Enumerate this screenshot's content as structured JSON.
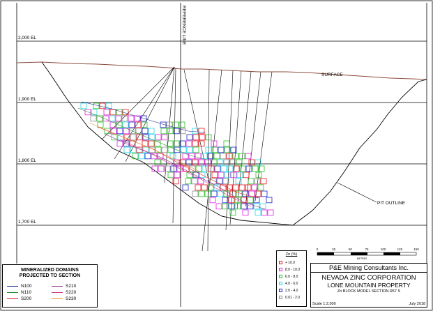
{
  "elevations": [
    {
      "label": "2,000 EL",
      "value": 2000
    },
    {
      "label": "1,900 EL",
      "value": 1900
    },
    {
      "label": "1,800 EL",
      "value": 1800
    },
    {
      "label": "1,700 EL",
      "value": 1700
    }
  ],
  "labels": {
    "reference_line": "REFERENCE LINE",
    "surface": "SURFACE",
    "pit_outline": "PIT OUTLINE"
  },
  "scale_bar": {
    "ticks": [
      "0",
      "25",
      "50",
      "75",
      "100",
      "125",
      "150"
    ],
    "unit": "METRES"
  },
  "legend_zn": {
    "title": "Zn (%)",
    "classes": [
      {
        "label": "+ 10.0",
        "color": "#e8141c"
      },
      {
        "label": "8.0 - 10.0",
        "color": "#e020e0"
      },
      {
        "label": "6.0 - 8.0",
        "color": "#24c024"
      },
      {
        "label": "4.0 - 6.0",
        "color": "#26d8e8"
      },
      {
        "label": "2.0 - 4.0",
        "color": "#1a24c8"
      },
      {
        "label": "0.01 - 2.0",
        "color": "#8a8a8a"
      }
    ]
  },
  "legend_domains": {
    "title_line1": "MINERALIZED DOMAINS",
    "title_line2": "PROJECTED TO SECTION",
    "items": [
      {
        "label": "N100",
        "color": "#1c2a8a"
      },
      {
        "label": "S210",
        "color": "#8a2a8a"
      },
      {
        "label": "N110",
        "color": "#2a8a2a"
      },
      {
        "label": "S220",
        "color": "#d23a8a"
      },
      {
        "label": "S200",
        "color": "#e02020"
      },
      {
        "label": "S230",
        "color": "#e8902a"
      }
    ]
  },
  "title_block": {
    "firm": "P&E Mining Consultants Inc.",
    "company": "NEVADA ZINC CORPORATION",
    "property": "LONE MOUNTAIN PROPERTY",
    "section": "Zn BLOCK MODEL SECTION R57 S",
    "scale": "Scale 1:2,500",
    "date": "July 2018"
  }
}
